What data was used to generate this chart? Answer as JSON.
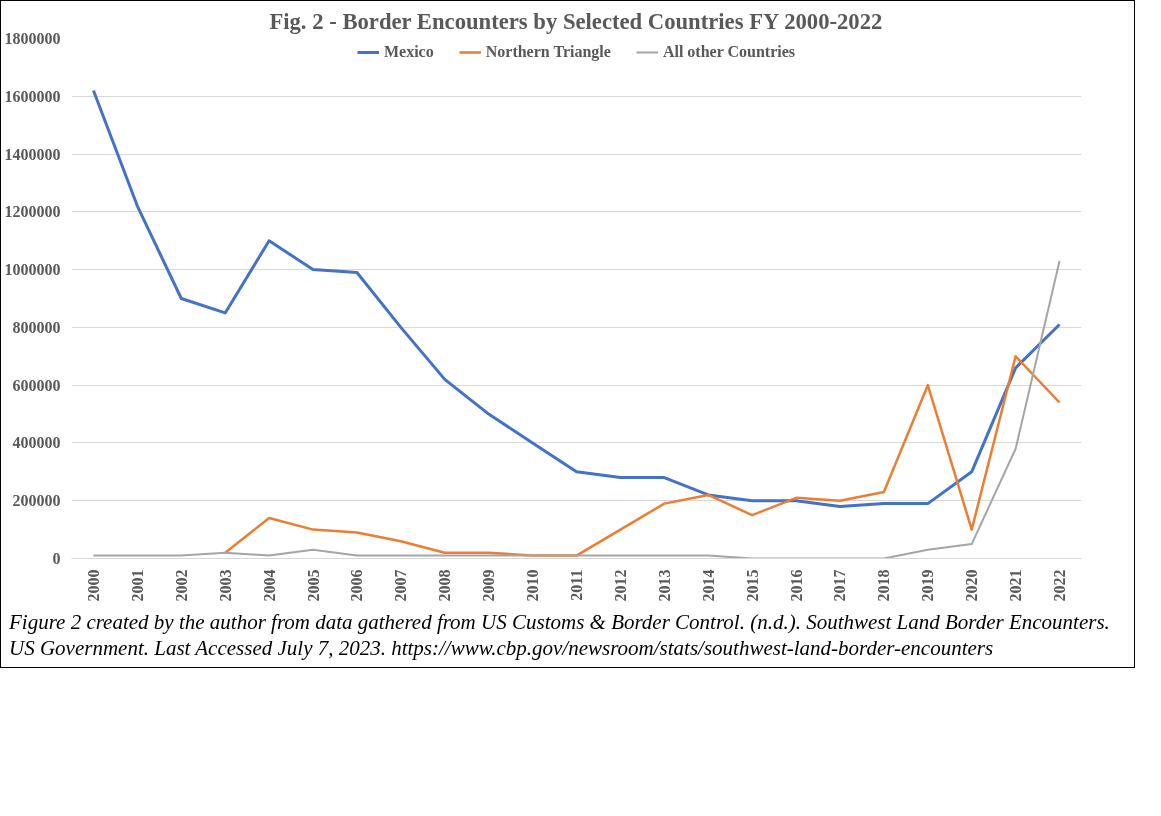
{
  "chart_data": {
    "type": "line",
    "title": "Fig. 2 - Border Encounters by Selected Countries FY 2000-2022",
    "categories": [
      "2000",
      "2001",
      "2002",
      "2003",
      "2004",
      "2005",
      "2006",
      "2007",
      "2008",
      "2009",
      "2010",
      "2011",
      "2012",
      "2013",
      "2014",
      "2015",
      "2016",
      "2017",
      "2018",
      "2019",
      "2020",
      "2021",
      "2022"
    ],
    "series": [
      {
        "name": "Mexico",
        "color": "#4472c4",
        "values": [
          1620000,
          1220000,
          900000,
          850000,
          1100000,
          1000000,
          990000,
          800000,
          620000,
          500000,
          400000,
          300000,
          280000,
          280000,
          220000,
          200000,
          200000,
          180000,
          190000,
          190000,
          300000,
          660000,
          810000
        ]
      },
      {
        "name": "Northern Triangle",
        "color": "#ed7d31",
        "values": [
          null,
          null,
          null,
          20000,
          140000,
          100000,
          90000,
          60000,
          20000,
          20000,
          10000,
          10000,
          100000,
          190000,
          220000,
          150000,
          210000,
          200000,
          230000,
          600000,
          100000,
          700000,
          540000
        ]
      },
      {
        "name": "All other Countries",
        "color": "#a5a5a5",
        "values": [
          10000,
          10000,
          10000,
          20000,
          10000,
          30000,
          10000,
          10000,
          10000,
          10000,
          10000,
          10000,
          10000,
          10000,
          10000,
          0,
          0,
          0,
          0,
          30000,
          50000,
          380000,
          1030000
        ]
      }
    ],
    "ylim": [
      0,
      1800000
    ],
    "yticks": [
      0,
      200000,
      400000,
      600000,
      800000,
      1000000,
      1200000,
      1400000,
      1600000,
      1800000
    ],
    "grid": "y",
    "legend": "top",
    "line_style": "solid",
    "annotations": [
      "Figure 2 created by the author from data gathered from US Customs & Border Control. (n.d.). Southwest Land Border Encounters. US Government. Last Accessed July 7, 2023. https://www.cbp.gov/newsroom/stats/southwest-land-border-encounters"
    ]
  }
}
